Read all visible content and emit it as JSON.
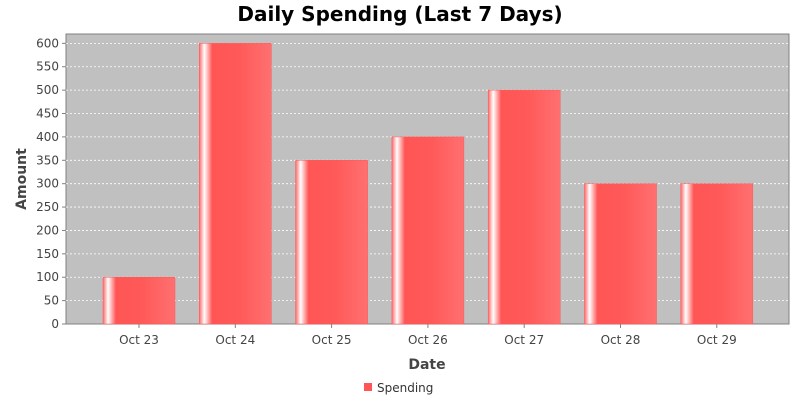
{
  "chart_data": {
    "type": "bar",
    "title": "Daily Spending (Last 7 Days)",
    "xlabel": "Date",
    "ylabel": "Amount",
    "categories": [
      "Oct 23",
      "Oct 24",
      "Oct 25",
      "Oct 26",
      "Oct 27",
      "Oct 28",
      "Oct 29"
    ],
    "series": [
      {
        "name": "Spending",
        "values": [
          100,
          600,
          350,
          400,
          500,
          300,
          300
        ],
        "color": "#ff5555"
      }
    ],
    "ylim": [
      0,
      620
    ],
    "yticks": [
      0,
      50,
      100,
      150,
      200,
      250,
      300,
      350,
      400,
      450,
      500,
      550,
      600
    ],
    "grid": true,
    "legend_position": "bottom",
    "plot_background": "#c0c0c0"
  }
}
